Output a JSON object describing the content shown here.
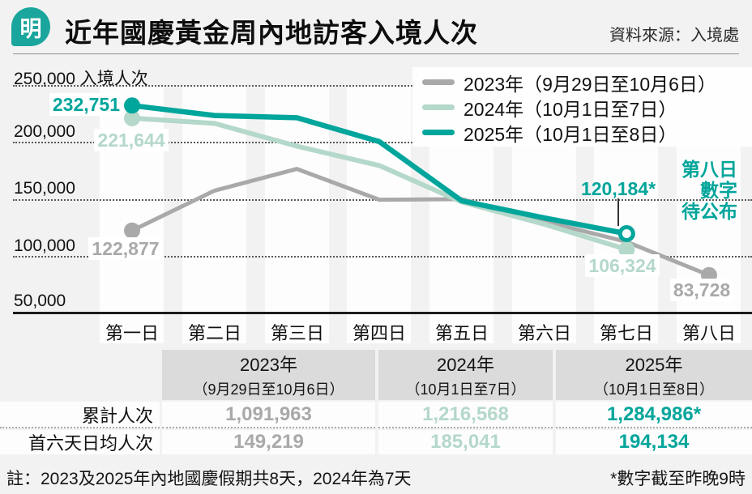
{
  "header": {
    "logo_char": "明",
    "title": "近年國慶黃金周內地訪客入境人次",
    "source": "資料來源：入境處"
  },
  "colors": {
    "brand_teal": "#00a59b",
    "series_2023_gray": "#a9a9a9",
    "series_2024_green": "#b4d8ca",
    "page_background": "#f2f2f2",
    "table_header_bg": "#dbdbdb"
  },
  "chart_data": {
    "type": "line",
    "title": "近年國慶黃金周內地訪客入境人次",
    "unit_label": "入境人次",
    "ylim": [
      50000,
      250000
    ],
    "yticks": [
      250000,
      200000,
      150000,
      100000,
      50000
    ],
    "ytick_labels": [
      "250,000 入境人次",
      "200,000",
      "150,000",
      "100,000",
      "50,000"
    ],
    "grid": "horizontal dotted",
    "legend_position": "top-right",
    "categories": [
      "第一日",
      "第二日",
      "第三日",
      "第四日",
      "第五日",
      "第六日",
      "第七日",
      "第八日"
    ],
    "series": [
      {
        "name": "2023年（9月29日至10月6日）",
        "color": "#a9a9a9",
        "end_marker": "filled",
        "values": [
          122877,
          158000,
          177000,
          150000,
          150500,
          131000,
          113000,
          83728
        ]
      },
      {
        "name": "2024年（10月1日至7日）",
        "color": "#b4d8ca",
        "end_marker": "filled",
        "values": [
          221644,
          217000,
          197000,
          180000,
          148000,
          128500,
          106324,
          null
        ]
      },
      {
        "name": "2025年（10月1日至8日）",
        "color": "#00a59b",
        "end_marker": "open",
        "values": [
          232751,
          224000,
          222000,
          201000,
          149000,
          134000,
          120184,
          null
        ]
      }
    ],
    "point_labels": {
      "v2025_d1": "232,751",
      "v2024_d1": "221,644",
      "v2023_d1": "122,877",
      "v2025_d7": "120,184*",
      "v2024_d7": "106,324",
      "v2023_d8": "83,728"
    },
    "annotation_note": {
      "line1": "第八日",
      "line2": "數字",
      "line3": "待公布"
    }
  },
  "table": {
    "col_headers": [
      {
        "line1": "2023年",
        "line2": "（9月29日至10月6日）"
      },
      {
        "line1": "2024年",
        "line2": "（10月1日至7日）"
      },
      {
        "line1": "2025年",
        "line2": "（10月1日至8日）"
      }
    ],
    "rows": [
      {
        "label": "累計人次",
        "values": [
          "1,091,963",
          "1,216,568",
          "1,284,986*"
        ]
      },
      {
        "label": "首六天日均人次",
        "values": [
          "149,219",
          "185,041",
          "194,134"
        ]
      }
    ]
  },
  "footnotes": {
    "left": "註：2023及2025年內地國慶假期共8天，2024年為7天",
    "right": "*數字截至昨晚9時"
  }
}
